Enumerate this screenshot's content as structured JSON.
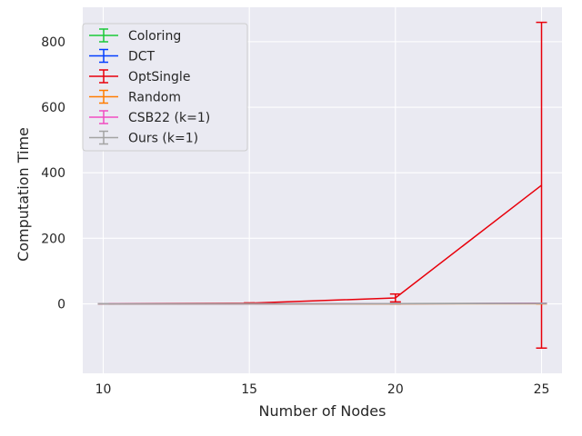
{
  "chart_data": {
    "type": "line",
    "title": "",
    "xlabel": "Number of Nodes",
    "ylabel": "Computation Time",
    "x": [
      10,
      15,
      20,
      25
    ],
    "xticks": [
      10,
      15,
      20,
      25
    ],
    "yticks": [
      0,
      200,
      400,
      600,
      800
    ],
    "xlim": [
      9.3,
      25.7
    ],
    "ylim": [
      -212,
      905
    ],
    "grid": true,
    "legend_position": "top-left",
    "background": "#eaeaf2",
    "series": [
      {
        "name": "Coloring",
        "color": "#1ac938",
        "values": [
          0.2,
          0.4,
          0.8,
          1.5
        ],
        "err": [
          0.1,
          0.2,
          0.3,
          0.5
        ]
      },
      {
        "name": "DCT",
        "color": "#023eff",
        "values": [
          0.1,
          0.2,
          0.5,
          1.0
        ],
        "err": [
          0.05,
          0.1,
          0.2,
          0.3
        ]
      },
      {
        "name": "OptSingle",
        "color": "#e8000b",
        "values": [
          0.5,
          2,
          18,
          362
        ],
        "err": [
          0.2,
          1,
          12,
          497
        ]
      },
      {
        "name": "Random",
        "color": "#ff7c00",
        "values": [
          0.05,
          0.1,
          0.2,
          0.3
        ],
        "err": [
          0.02,
          0.05,
          0.1,
          0.1
        ]
      },
      {
        "name": "CSB22 (k=1)",
        "color": "#f14cc1",
        "values": [
          0.3,
          0.5,
          0.9,
          1.6
        ],
        "err": [
          0.1,
          0.2,
          0.3,
          0.4
        ]
      },
      {
        "name": "Ours (k=1)",
        "color": "#a3a3a3",
        "values": [
          0.2,
          0.3,
          0.6,
          1.2
        ],
        "err": [
          0.1,
          0.1,
          0.2,
          0.3
        ]
      }
    ]
  }
}
